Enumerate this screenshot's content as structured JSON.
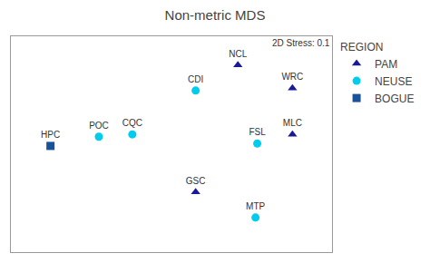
{
  "chart_data": {
    "type": "scatter",
    "title": "Non-metric MDS",
    "annotations": [
      "2D Stress: 0.1"
    ],
    "legend_title": "REGION",
    "legend": "right",
    "series": [
      {
        "name": "PAM",
        "color": "#1a1a99",
        "marker": "triangle",
        "labels": [
          "NCL",
          "WRC",
          "MLC",
          "GSC"
        ],
        "x": [
          0.58,
          1.2,
          1.2,
          0.1
        ],
        "values": [
          0.8,
          0.6,
          0.2,
          -0.3
        ]
      },
      {
        "name": "NEUSE",
        "color": "#00ccee",
        "marker": "circle",
        "labels": [
          "POC",
          "CQC",
          "CDI",
          "FSL",
          "MTP"
        ],
        "x": [
          -1.0,
          -0.62,
          0.1,
          0.8,
          0.78
        ],
        "values": [
          0.18,
          0.2,
          0.58,
          0.12,
          -0.52
        ]
      },
      {
        "name": "BOGUE",
        "color": "#1a5299",
        "marker": "square",
        "labels": [
          "HPC"
        ],
        "x": [
          -1.55
        ],
        "values": [
          0.1
        ]
      }
    ],
    "xlim": [
      -2.0,
      1.65
    ],
    "ylim": [
      -0.82,
      1.05
    ],
    "xticks": [],
    "yticks": [],
    "tick_labels": false,
    "grid": false
  }
}
